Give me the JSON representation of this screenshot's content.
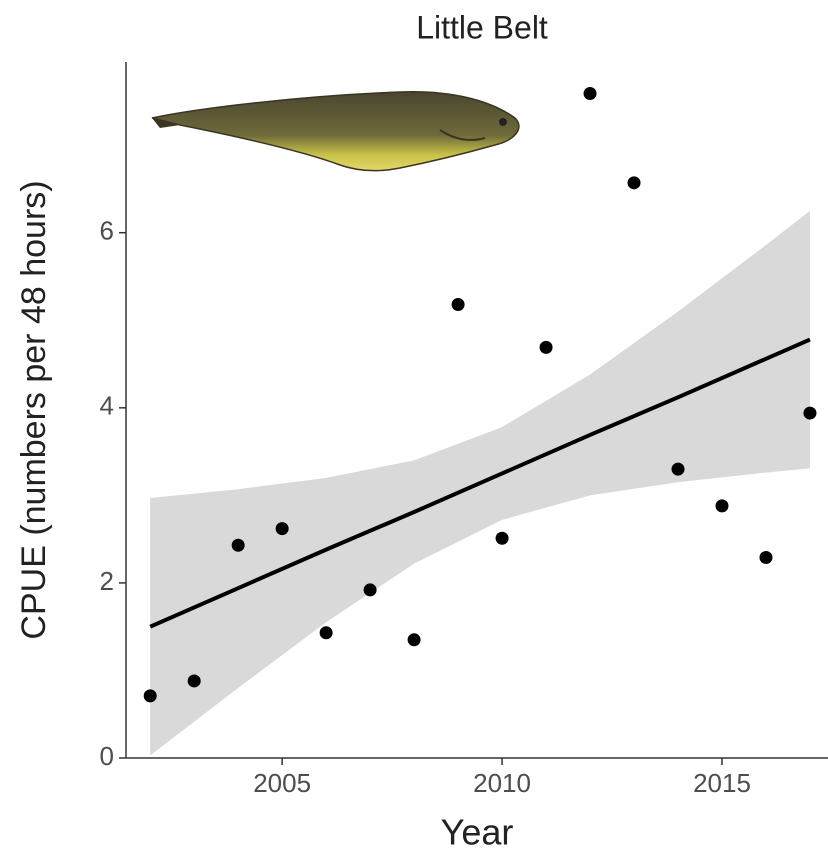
{
  "chart_data": {
    "type": "scatter",
    "title": "Little Belt",
    "x_label": "Year",
    "y_label": "CPUE (numbers per 48 hours)",
    "xlim": [
      2001.45,
      2017.41
    ],
    "ylim": [
      0,
      7.95
    ],
    "xticks": [
      2005,
      2010,
      2015
    ],
    "yticks": [
      0,
      2,
      4,
      6
    ],
    "grid": false,
    "points": {
      "color": "#000000",
      "x": [
        2002,
        2003,
        2004,
        2005,
        2006,
        2007,
        2008,
        2009,
        2010,
        2011,
        2012,
        2013,
        2014,
        2015,
        2016,
        2017
      ],
      "values": [
        0.71,
        0.88,
        2.43,
        2.62,
        1.43,
        1.92,
        1.35,
        5.18,
        2.51,
        4.69,
        7.59,
        6.57,
        3.3,
        2.88,
        2.29,
        3.94
      ]
    },
    "fit": {
      "color": "#000000",
      "band_color": "#d9d9d9",
      "x": [
        2002,
        2004,
        2006,
        2008,
        2010,
        2012,
        2014,
        2016,
        2017
      ],
      "values": [
        1.5,
        1.94,
        2.38,
        2.81,
        3.25,
        3.69,
        4.12,
        4.56,
        4.78
      ],
      "upper": [
        2.97,
        3.07,
        3.2,
        3.4,
        3.78,
        4.38,
        5.1,
        5.86,
        6.25
      ],
      "lower": [
        0.03,
        0.8,
        1.55,
        2.22,
        2.72,
        3.0,
        3.15,
        3.26,
        3.31
      ]
    }
  }
}
